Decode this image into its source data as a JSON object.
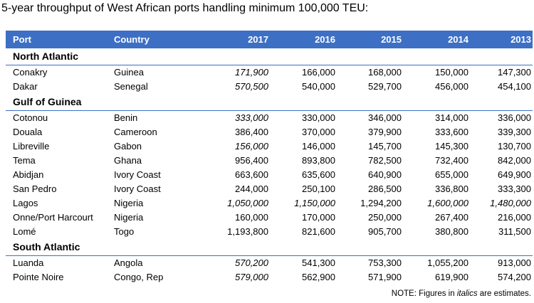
{
  "title": "5-year throughput of West African ports handling minimum 100,000 TEU:",
  "columns": [
    "Port",
    "Country",
    "2017",
    "2016",
    "2015",
    "2014",
    "2013"
  ],
  "regions": [
    {
      "name": "North Atlantic",
      "rows": [
        {
          "port": "Conakry",
          "country": "Guinea",
          "values": [
            "171,900",
            "166,000",
            "168,000",
            "150,000",
            "147,300"
          ],
          "estimated": [
            true,
            false,
            false,
            false,
            false
          ]
        },
        {
          "port": "Dakar",
          "country": "Senegal",
          "values": [
            "570,500",
            "540,000",
            "529,700",
            "456,000",
            "454,100"
          ],
          "estimated": [
            true,
            false,
            false,
            false,
            false
          ]
        }
      ]
    },
    {
      "name": "Gulf of Guinea",
      "rows": [
        {
          "port": "Cotonou",
          "country": "Benin",
          "values": [
            "333,000",
            "330,000",
            "346,000",
            "314,000",
            "336,000"
          ],
          "estimated": [
            true,
            false,
            false,
            false,
            false
          ]
        },
        {
          "port": "Douala",
          "country": "Cameroon",
          "values": [
            "386,400",
            "370,000",
            "379,900",
            "333,600",
            "339,300"
          ],
          "estimated": [
            false,
            false,
            false,
            false,
            false
          ]
        },
        {
          "port": "Libreville",
          "country": "Gabon",
          "values": [
            "156,000",
            "146,000",
            "145,700",
            "145,300",
            "130,700"
          ],
          "estimated": [
            true,
            false,
            false,
            false,
            false
          ]
        },
        {
          "port": "Tema",
          "country": "Ghana",
          "values": [
            "956,400",
            "893,800",
            "782,500",
            "732,400",
            "842,000"
          ],
          "estimated": [
            false,
            false,
            false,
            false,
            false
          ]
        },
        {
          "port": "Abidjan",
          "country": "Ivory Coast",
          "values": [
            "663,600",
            "635,600",
            "640,900",
            "655,000",
            "649,900"
          ],
          "estimated": [
            false,
            false,
            false,
            false,
            false
          ]
        },
        {
          "port": "San Pedro",
          "country": "Ivory Coast",
          "values": [
            "244,000",
            "250,100",
            "286,500",
            "336,800",
            "333,300"
          ],
          "estimated": [
            false,
            false,
            false,
            false,
            false
          ]
        },
        {
          "port": "Lagos",
          "country": "Nigeria",
          "values": [
            "1,050,000",
            "1,150,000",
            "1,294,200",
            "1,600,000",
            "1,480,000"
          ],
          "estimated": [
            true,
            true,
            false,
            true,
            true
          ]
        },
        {
          "port": "Onne/Port Harcourt",
          "country": "Nigeria",
          "values": [
            "160,000",
            "170,000",
            "250,000",
            "267,400",
            "216,000"
          ],
          "estimated": [
            false,
            false,
            false,
            false,
            false
          ]
        },
        {
          "port": "Lomé",
          "country": "Togo",
          "values": [
            "1,193,800",
            "821,600",
            "905,700",
            "380,800",
            "311,500"
          ],
          "estimated": [
            false,
            false,
            false,
            false,
            false
          ]
        }
      ]
    },
    {
      "name": "South Atlantic",
      "rows": [
        {
          "port": "Luanda",
          "country": "Angola",
          "values": [
            "570,200",
            "541,300",
            "753,300",
            "1,055,200",
            "913,000"
          ],
          "estimated": [
            true,
            false,
            false,
            false,
            false
          ]
        },
        {
          "port": "Pointe Noire",
          "country": "Congo, Rep",
          "values": [
            "579,000",
            "562,900",
            "571,900",
            "619,900",
            "574,200"
          ],
          "estimated": [
            true,
            false,
            false,
            false,
            false
          ]
        }
      ]
    }
  ],
  "note": {
    "prefix": "NOTE: Figures in ",
    "emphasis": "italics",
    "suffix": " are estimates."
  },
  "colors": {
    "header_bg": "#3d6fc4",
    "header_text": "#ffffff",
    "region_rule": "#3d6fc4"
  }
}
